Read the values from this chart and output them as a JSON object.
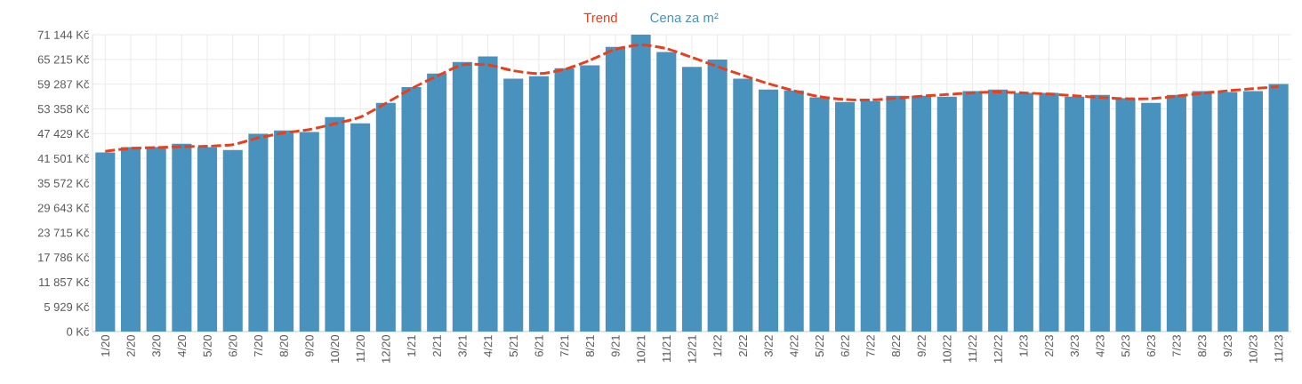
{
  "chart_data": {
    "type": "bar",
    "categories": [
      "1/20",
      "2/20",
      "3/20",
      "4/20",
      "5/20",
      "6/20",
      "7/20",
      "8/20",
      "9/20",
      "10/20",
      "11/20",
      "12/20",
      "1/21",
      "2/21",
      "3/21",
      "4/21",
      "5/21",
      "6/21",
      "7/21",
      "8/21",
      "9/21",
      "10/21",
      "11/21",
      "12/21",
      "1/22",
      "2/22",
      "3/22",
      "4/22",
      "5/22",
      "6/22",
      "7/22",
      "8/22",
      "9/22",
      "10/22",
      "11/22",
      "12/22",
      "1/23",
      "2/23",
      "3/23",
      "4/23",
      "5/23",
      "6/23",
      "7/23",
      "8/23",
      "9/23",
      "10/23",
      "11/23"
    ],
    "series": [
      {
        "name": "Trend",
        "type": "line",
        "line_style": "dashed",
        "color": "#e8401c",
        "values": [
          43200,
          43900,
          44100,
          44300,
          44400,
          44800,
          46400,
          47600,
          48400,
          49800,
          51400,
          54700,
          58200,
          61200,
          63900,
          63900,
          62500,
          61800,
          62800,
          65000,
          67600,
          68700,
          67800,
          65700,
          63500,
          61400,
          59400,
          57700,
          56300,
          55600,
          55500,
          55900,
          56400,
          56800,
          57200,
          57400,
          57200,
          56900,
          56500,
          56100,
          55800,
          55800,
          56400,
          57100,
          57700,
          58200,
          58700
        ]
      },
      {
        "name": "Cena za m²",
        "color": "#4a92be",
        "values": [
          42900,
          44200,
          44200,
          45000,
          44200,
          43500,
          47400,
          48200,
          47800,
          51400,
          49900,
          54800,
          58600,
          61800,
          64600,
          65900,
          60600,
          61200,
          63100,
          63800,
          68200,
          71144,
          67000,
          63400,
          65200,
          60600,
          58000,
          57800,
          56100,
          55000,
          55200,
          56500,
          56500,
          56300,
          57600,
          58000,
          57200,
          57200,
          56300,
          56700,
          55900,
          54800,
          56700,
          57600,
          57400,
          57600,
          59300
        ]
      }
    ],
    "ylim": [
      0,
      71144
    ],
    "yticks": [
      {
        "value": 0,
        "label": "0 Kč"
      },
      {
        "value": 5929,
        "label": "5 929 Kč"
      },
      {
        "value": 11857,
        "label": "11 857 Kč"
      },
      {
        "value": 17786,
        "label": "17 786 Kč"
      },
      {
        "value": 23715,
        "label": "23 715 Kč"
      },
      {
        "value": 29643,
        "label": "29 643 Kč"
      },
      {
        "value": 35572,
        "label": "35 572 Kč"
      },
      {
        "value": 41501,
        "label": "41 501 Kč"
      },
      {
        "value": 47429,
        "label": "47 429 Kč"
      },
      {
        "value": 53358,
        "label": "53 358 Kč"
      },
      {
        "value": 59287,
        "label": "59 287 Kč"
      },
      {
        "value": 65215,
        "label": "65 215 Kč"
      },
      {
        "value": 71144,
        "label": "71 144 Kč"
      }
    ],
    "grid": true,
    "legend": "top"
  }
}
